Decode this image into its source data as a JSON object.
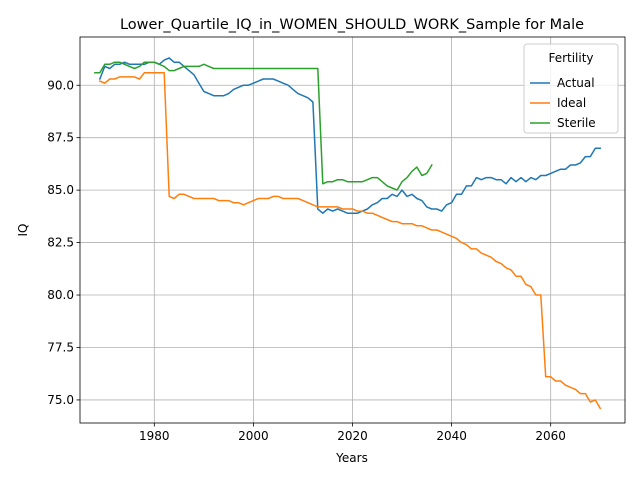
{
  "chart_data": {
    "type": "line",
    "title": "Lower_Quartile_IQ_in_WOMEN_SHOULD_WORK_Sample for Male",
    "xlabel": "Years",
    "ylabel": "IQ",
    "xlim": [
      1965,
      2075
    ],
    "ylim": [
      73.9,
      92.3
    ],
    "xticks": [
      1980,
      2000,
      2020,
      2040,
      2060
    ],
    "xtick_labels": [
      "1980",
      "2000",
      "2020",
      "2040",
      "2060"
    ],
    "yticks": [
      75.0,
      77.5,
      80.0,
      82.5,
      85.0,
      87.5,
      90.0
    ],
    "ytick_labels": [
      "75.0",
      "77.5",
      "80.0",
      "82.5",
      "85.0",
      "87.5",
      "90.0"
    ],
    "grid": true,
    "legend": {
      "title": "Fertility",
      "position": "upper right"
    },
    "series": [
      {
        "name": "Actual",
        "color": "#1f77b4",
        "points": [
          [
            1969,
            90.3
          ],
          [
            1970,
            90.9
          ],
          [
            1971,
            90.8
          ],
          [
            1972,
            91.0
          ],
          [
            1973,
            91.0
          ],
          [
            1974,
            91.1
          ],
          [
            1975,
            91.0
          ],
          [
            1976,
            91.0
          ],
          [
            1977,
            91.0
          ],
          [
            1978,
            91.0
          ],
          [
            1979,
            91.1
          ],
          [
            1980,
            91.1
          ],
          [
            1981,
            91.0
          ],
          [
            1982,
            91.2
          ],
          [
            1983,
            91.3
          ],
          [
            1984,
            91.1
          ],
          [
            1985,
            91.1
          ],
          [
            1986,
            90.9
          ],
          [
            1987,
            90.7
          ],
          [
            1988,
            90.5
          ],
          [
            1989,
            90.1
          ],
          [
            1990,
            89.7
          ],
          [
            1991,
            89.6
          ],
          [
            1992,
            89.5
          ],
          [
            1993,
            89.5
          ],
          [
            1994,
            89.5
          ],
          [
            1995,
            89.6
          ],
          [
            1996,
            89.8
          ],
          [
            1997,
            89.9
          ],
          [
            1998,
            90.0
          ],
          [
            1999,
            90.0
          ],
          [
            2000,
            90.1
          ],
          [
            2001,
            90.2
          ],
          [
            2002,
            90.3
          ],
          [
            2003,
            90.3
          ],
          [
            2004,
            90.3
          ],
          [
            2005,
            90.2
          ],
          [
            2006,
            90.1
          ],
          [
            2007,
            90.0
          ],
          [
            2008,
            89.8
          ],
          [
            2009,
            89.6
          ],
          [
            2010,
            89.5
          ],
          [
            2011,
            89.4
          ],
          [
            2012,
            89.2
          ],
          [
            2013,
            84.1
          ],
          [
            2014,
            83.9
          ],
          [
            2015,
            84.1
          ],
          [
            2016,
            84.0
          ],
          [
            2017,
            84.1
          ],
          [
            2018,
            84.0
          ],
          [
            2019,
            83.9
          ],
          [
            2020,
            83.9
          ],
          [
            2021,
            83.9
          ],
          [
            2022,
            84.0
          ],
          [
            2023,
            84.1
          ],
          [
            2024,
            84.3
          ],
          [
            2025,
            84.4
          ],
          [
            2026,
            84.6
          ],
          [
            2027,
            84.6
          ],
          [
            2028,
            84.8
          ],
          [
            2029,
            84.7
          ],
          [
            2030,
            85.0
          ],
          [
            2031,
            84.7
          ],
          [
            2032,
            84.8
          ],
          [
            2033,
            84.6
          ],
          [
            2034,
            84.5
          ],
          [
            2035,
            84.2
          ],
          [
            2036,
            84.1
          ],
          [
            2037,
            84.1
          ],
          [
            2038,
            84.0
          ],
          [
            2039,
            84.3
          ],
          [
            2040,
            84.4
          ],
          [
            2041,
            84.8
          ],
          [
            2042,
            84.8
          ],
          [
            2043,
            85.2
          ],
          [
            2044,
            85.2
          ],
          [
            2045,
            85.6
          ],
          [
            2046,
            85.5
          ],
          [
            2047,
            85.6
          ],
          [
            2048,
            85.6
          ],
          [
            2049,
            85.5
          ],
          [
            2050,
            85.5
          ],
          [
            2051,
            85.3
          ],
          [
            2052,
            85.6
          ],
          [
            2053,
            85.4
          ],
          [
            2054,
            85.6
          ],
          [
            2055,
            85.4
          ],
          [
            2056,
            85.6
          ],
          [
            2057,
            85.5
          ],
          [
            2058,
            85.7
          ],
          [
            2059,
            85.7
          ],
          [
            2060,
            85.8
          ],
          [
            2061,
            85.9
          ],
          [
            2062,
            86.0
          ],
          [
            2063,
            86.0
          ],
          [
            2064,
            86.2
          ],
          [
            2065,
            86.2
          ],
          [
            2066,
            86.3
          ],
          [
            2067,
            86.6
          ],
          [
            2068,
            86.6
          ],
          [
            2069,
            87.0
          ],
          [
            2070,
            87.0
          ]
        ]
      },
      {
        "name": "Ideal",
        "color": "#ff7f0e",
        "points": [
          [
            1969,
            90.2
          ],
          [
            1970,
            90.1
          ],
          [
            1971,
            90.3
          ],
          [
            1972,
            90.3
          ],
          [
            1973,
            90.4
          ],
          [
            1974,
            90.4
          ],
          [
            1975,
            90.4
          ],
          [
            1976,
            90.4
          ],
          [
            1977,
            90.3
          ],
          [
            1978,
            90.6
          ],
          [
            1979,
            90.6
          ],
          [
            1980,
            90.6
          ],
          [
            1981,
            90.6
          ],
          [
            1982,
            90.6
          ],
          [
            1983,
            84.7
          ],
          [
            1984,
            84.6
          ],
          [
            1985,
            84.8
          ],
          [
            1986,
            84.8
          ],
          [
            1987,
            84.7
          ],
          [
            1988,
            84.6
          ],
          [
            1989,
            84.6
          ],
          [
            1990,
            84.6
          ],
          [
            1991,
            84.6
          ],
          [
            1992,
            84.6
          ],
          [
            1993,
            84.5
          ],
          [
            1994,
            84.5
          ],
          [
            1995,
            84.5
          ],
          [
            1996,
            84.4
          ],
          [
            1997,
            84.4
          ],
          [
            1998,
            84.3
          ],
          [
            1999,
            84.4
          ],
          [
            2000,
            84.5
          ],
          [
            2001,
            84.6
          ],
          [
            2002,
            84.6
          ],
          [
            2003,
            84.6
          ],
          [
            2004,
            84.7
          ],
          [
            2005,
            84.7
          ],
          [
            2006,
            84.6
          ],
          [
            2007,
            84.6
          ],
          [
            2008,
            84.6
          ],
          [
            2009,
            84.6
          ],
          [
            2010,
            84.5
          ],
          [
            2011,
            84.4
          ],
          [
            2012,
            84.3
          ],
          [
            2013,
            84.2
          ],
          [
            2014,
            84.2
          ],
          [
            2015,
            84.2
          ],
          [
            2016,
            84.2
          ],
          [
            2017,
            84.2
          ],
          [
            2018,
            84.1
          ],
          [
            2019,
            84.1
          ],
          [
            2020,
            84.1
          ],
          [
            2021,
            84.0
          ],
          [
            2022,
            84.0
          ],
          [
            2023,
            83.9
          ],
          [
            2024,
            83.9
          ],
          [
            2025,
            83.8
          ],
          [
            2026,
            83.7
          ],
          [
            2027,
            83.6
          ],
          [
            2028,
            83.5
          ],
          [
            2029,
            83.5
          ],
          [
            2030,
            83.4
          ],
          [
            2031,
            83.4
          ],
          [
            2032,
            83.4
          ],
          [
            2033,
            83.3
          ],
          [
            2034,
            83.3
          ],
          [
            2035,
            83.2
          ],
          [
            2036,
            83.1
          ],
          [
            2037,
            83.1
          ],
          [
            2038,
            83.0
          ],
          [
            2039,
            82.9
          ],
          [
            2040,
            82.8
          ],
          [
            2041,
            82.7
          ],
          [
            2042,
            82.5
          ],
          [
            2043,
            82.4
          ],
          [
            2044,
            82.2
          ],
          [
            2045,
            82.2
          ],
          [
            2046,
            82.0
          ],
          [
            2047,
            81.9
          ],
          [
            2048,
            81.8
          ],
          [
            2049,
            81.6
          ],
          [
            2050,
            81.5
          ],
          [
            2051,
            81.3
          ],
          [
            2052,
            81.2
          ],
          [
            2053,
            80.9
          ],
          [
            2054,
            80.9
          ],
          [
            2055,
            80.5
          ],
          [
            2056,
            80.4
          ],
          [
            2057,
            80.0
          ],
          [
            2058,
            80.0
          ],
          [
            2059,
            76.1
          ],
          [
            2060,
            76.1
          ],
          [
            2061,
            75.9
          ],
          [
            2062,
            75.9
          ],
          [
            2063,
            75.7
          ],
          [
            2064,
            75.6
          ],
          [
            2065,
            75.5
          ],
          [
            2066,
            75.3
          ],
          [
            2067,
            75.3
          ],
          [
            2068,
            74.9
          ],
          [
            2069,
            75.0
          ],
          [
            2070,
            74.6
          ]
        ]
      },
      {
        "name": "Sterile",
        "color": "#2ca02c",
        "points": [
          [
            1968,
            90.6
          ],
          [
            1969,
            90.6
          ],
          [
            1970,
            91.0
          ],
          [
            1971,
            91.0
          ],
          [
            1972,
            91.1
          ],
          [
            1973,
            91.1
          ],
          [
            1974,
            91.0
          ],
          [
            1975,
            90.9
          ],
          [
            1976,
            90.8
          ],
          [
            1977,
            90.9
          ],
          [
            1978,
            91.1
          ],
          [
            1979,
            91.1
          ],
          [
            1980,
            91.1
          ],
          [
            1981,
            91.0
          ],
          [
            1982,
            90.9
          ],
          [
            1983,
            90.7
          ],
          [
            1984,
            90.7
          ],
          [
            1985,
            90.8
          ],
          [
            1986,
            90.9
          ],
          [
            1987,
            90.9
          ],
          [
            1988,
            90.9
          ],
          [
            1989,
            90.9
          ],
          [
            1990,
            91.0
          ],
          [
            1991,
            90.9
          ],
          [
            1992,
            90.8
          ],
          [
            1993,
            90.8
          ],
          [
            1994,
            90.8
          ],
          [
            1995,
            90.8
          ],
          [
            1996,
            90.8
          ],
          [
            1997,
            90.8
          ],
          [
            1998,
            90.8
          ],
          [
            1999,
            90.8
          ],
          [
            2000,
            90.8
          ],
          [
            2001,
            90.8
          ],
          [
            2002,
            90.8
          ],
          [
            2003,
            90.8
          ],
          [
            2004,
            90.8
          ],
          [
            2005,
            90.8
          ],
          [
            2006,
            90.8
          ],
          [
            2007,
            90.8
          ],
          [
            2008,
            90.8
          ],
          [
            2009,
            90.8
          ],
          [
            2010,
            90.8
          ],
          [
            2011,
            90.8
          ],
          [
            2012,
            90.8
          ],
          [
            2013,
            90.8
          ],
          [
            2014,
            85.3
          ],
          [
            2015,
            85.4
          ],
          [
            2016,
            85.4
          ],
          [
            2017,
            85.5
          ],
          [
            2018,
            85.5
          ],
          [
            2019,
            85.4
          ],
          [
            2020,
            85.4
          ],
          [
            2021,
            85.4
          ],
          [
            2022,
            85.4
          ],
          [
            2023,
            85.5
          ],
          [
            2024,
            85.6
          ],
          [
            2025,
            85.6
          ],
          [
            2026,
            85.4
          ],
          [
            2027,
            85.2
          ],
          [
            2028,
            85.1
          ],
          [
            2029,
            85.0
          ],
          [
            2030,
            85.4
          ],
          [
            2031,
            85.6
          ],
          [
            2032,
            85.9
          ],
          [
            2033,
            86.1
          ],
          [
            2034,
            85.7
          ],
          [
            2035,
            85.8
          ],
          [
            2036,
            86.2
          ]
        ]
      }
    ]
  }
}
